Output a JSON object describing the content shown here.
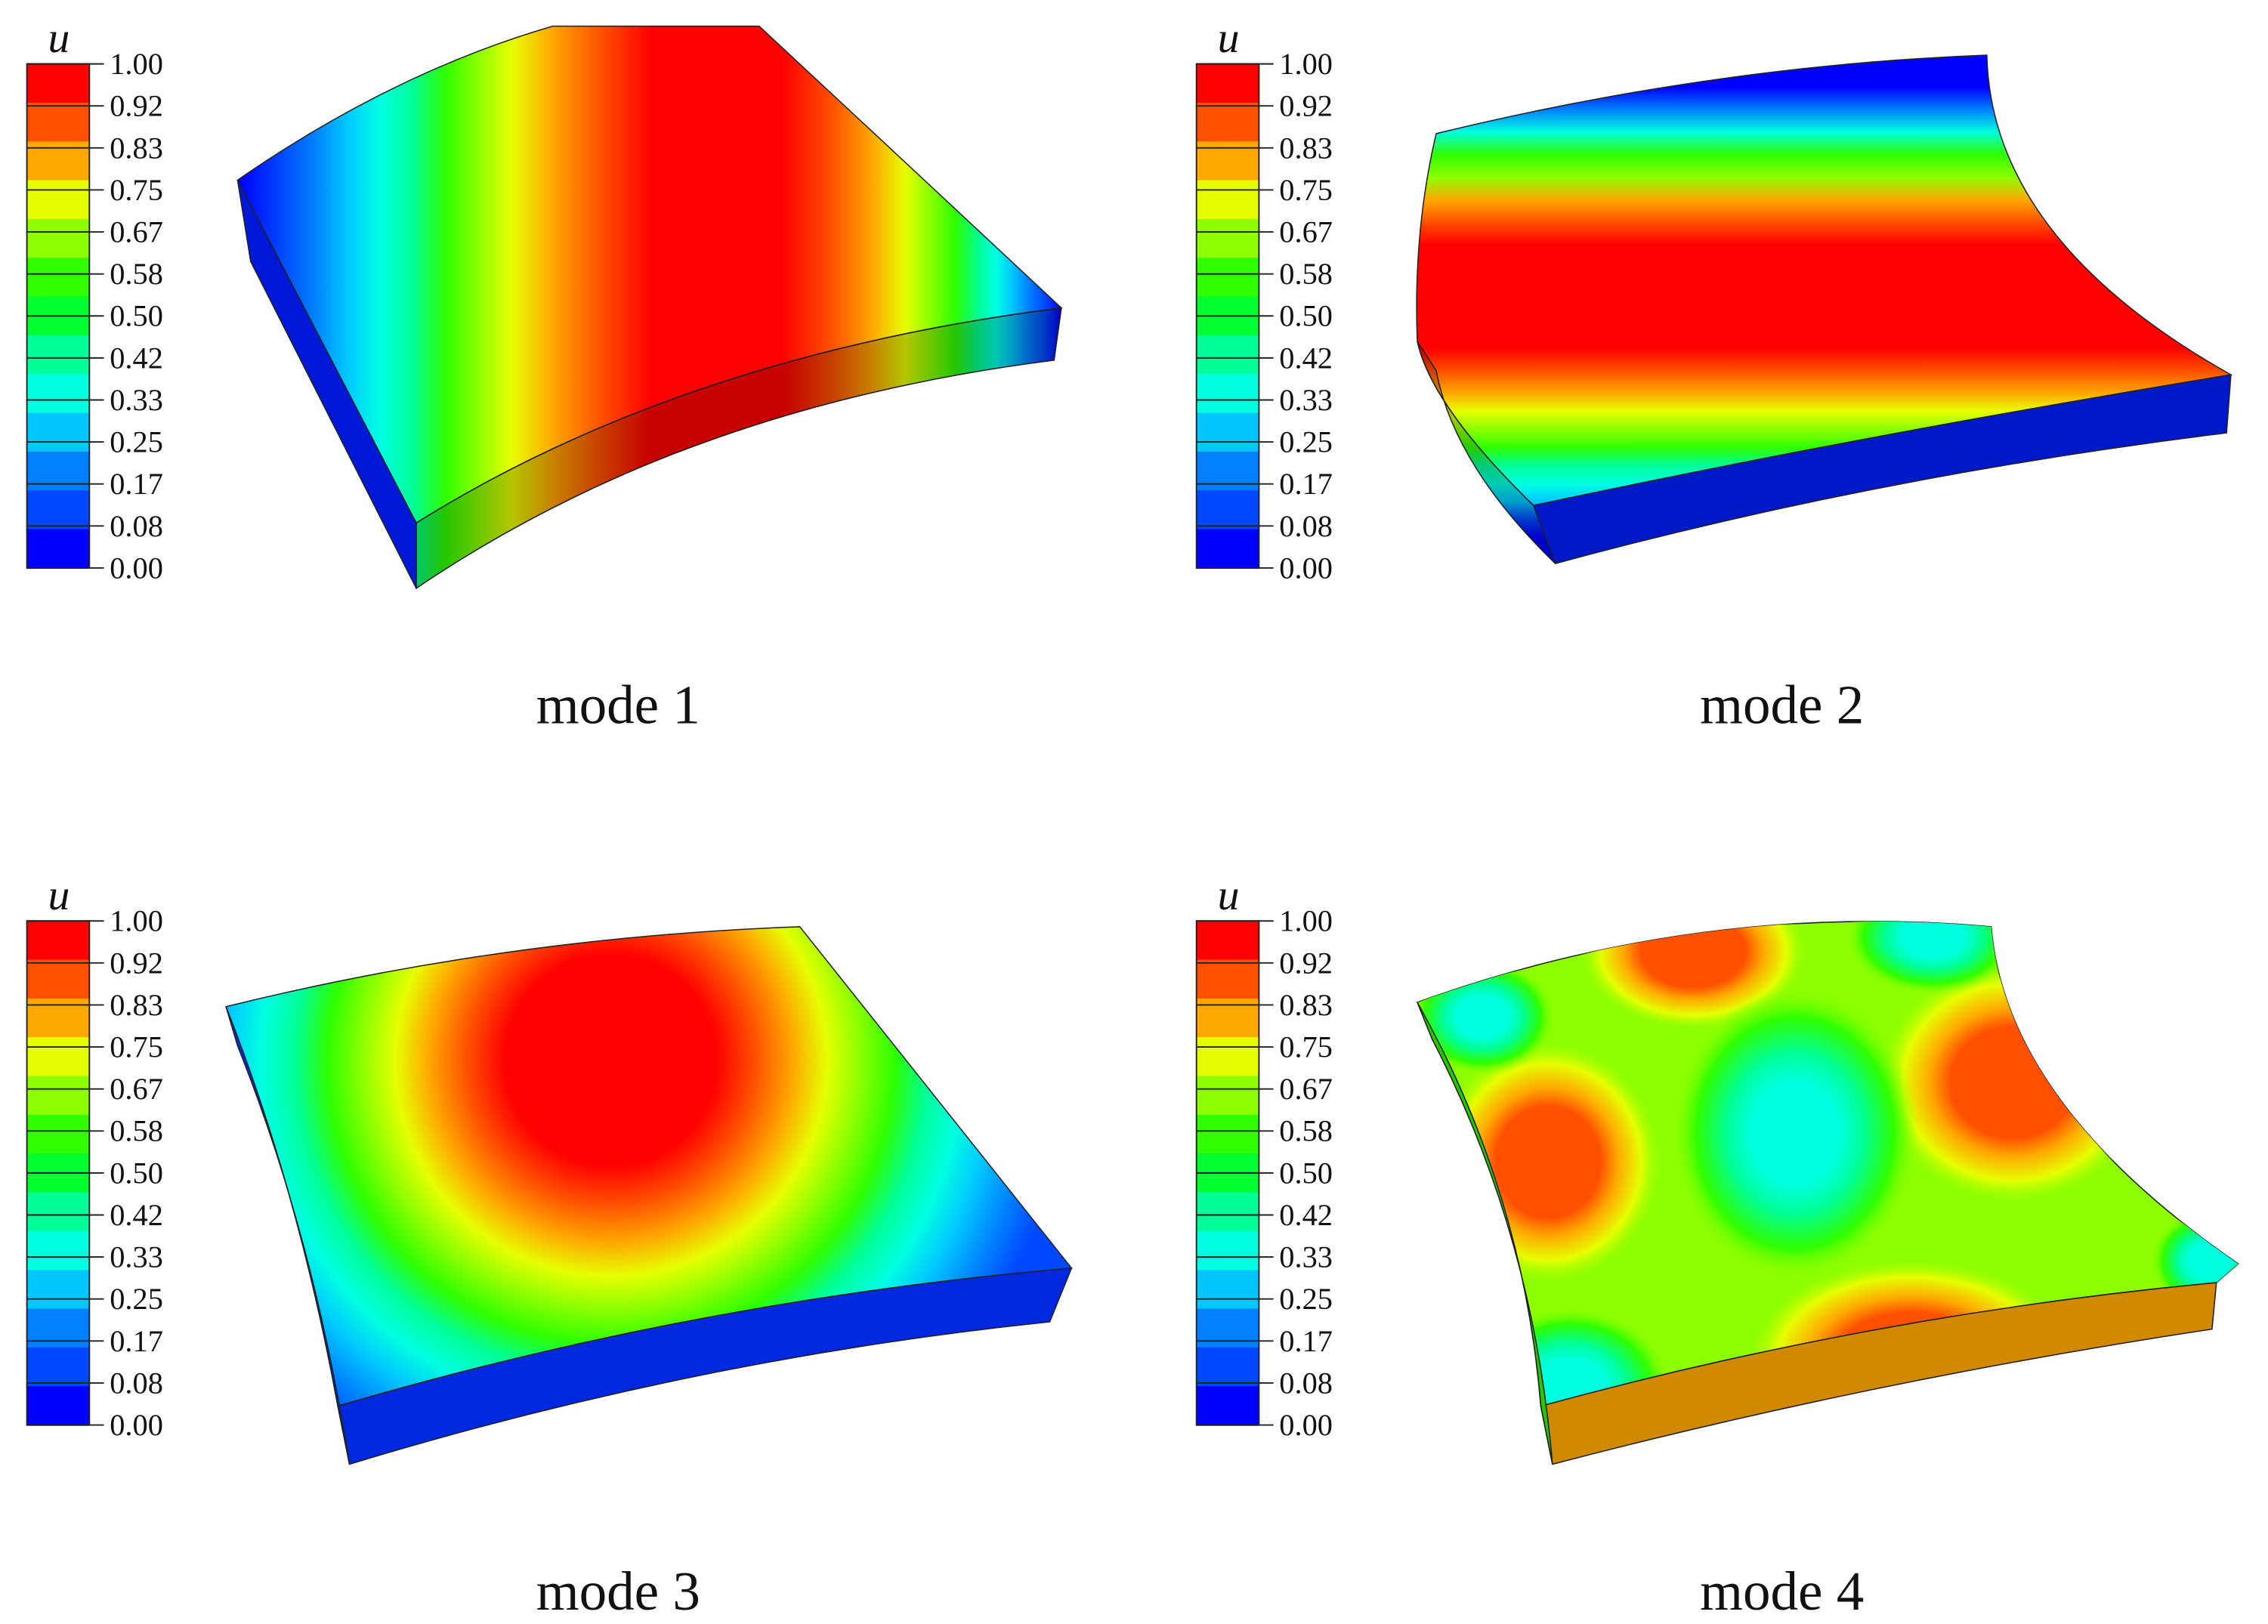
{
  "legend": {
    "symbol": "u",
    "ticks": [
      "1.00",
      "0.92",
      "0.83",
      "0.75",
      "0.67",
      "0.58",
      "0.50",
      "0.42",
      "0.33",
      "0.25",
      "0.17",
      "0.08",
      "0.00"
    ],
    "band_colors": [
      "#ff0000",
      "#ff5000",
      "#ffa800",
      "#e6ff00",
      "#8cff00",
      "#30ff00",
      "#00ff30",
      "#00ff98",
      "#00ffe0",
      "#00c8ff",
      "#0080ff",
      "#0048ff",
      "#0000ff"
    ]
  },
  "panels": [
    {
      "label": "mode 1",
      "pattern": "stripes-x"
    },
    {
      "label": "mode 2",
      "pattern": "stripes-y"
    },
    {
      "label": "mode 3",
      "pattern": "dome"
    },
    {
      "label": "mode 4",
      "pattern": "checker"
    }
  ]
}
